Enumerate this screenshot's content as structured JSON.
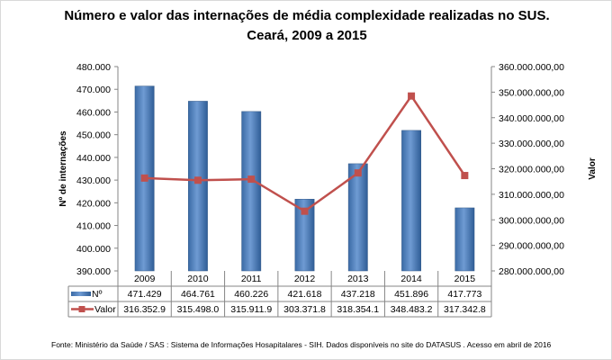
{
  "chart_data": {
    "type": "bar+line",
    "title": "Número e valor das internações de média complexidade realizadas no SUS.",
    "subtitle": "Ceará, 2009 a 2015",
    "categories": [
      "2009",
      "2010",
      "2011",
      "2012",
      "2013",
      "2014",
      "2015"
    ],
    "ylabel_left": "Nº de internações",
    "ylabel_right": "Valor",
    "ylim_left": [
      390000,
      480000
    ],
    "ylim_right": [
      280000000,
      360000000
    ],
    "yticks_left": [
      "390.000",
      "400.000",
      "410.000",
      "420.000",
      "430.000",
      "440.000",
      "450.000",
      "460.000",
      "470.000",
      "480.000"
    ],
    "yticks_right": [
      "280.000.000,00",
      "290.000.000,00",
      "300.000.000,00",
      "310.000.000,00",
      "320.000.000,00",
      "330.000.000,00",
      "340.000.000,00",
      "350.000.000,00",
      "360.000.000,00"
    ],
    "grid": false,
    "series": [
      {
        "name": "Nº",
        "type": "bar",
        "axis": "left",
        "color": "#4f81bd",
        "values": [
          471429,
          464761,
          460226,
          421618,
          437218,
          451896,
          417773
        ],
        "labels": [
          "471.429",
          "464.761",
          "460.226",
          "421.618",
          "437.218",
          "451.896",
          "417.773"
        ]
      },
      {
        "name": "Valor",
        "type": "line",
        "axis": "right",
        "color": "#c0504d",
        "values": [
          316352900,
          315498000,
          315911900,
          303371800,
          318354100,
          348483200,
          317342800
        ],
        "labels": [
          "316.352.9",
          "315.498.0",
          "315.911.9",
          "303.371.8",
          "318.354.1",
          "348.483.2",
          "317.342.8"
        ]
      }
    ],
    "legend": "data-table"
  },
  "source": "Fonte:  Ministério da Saúde / SAS : Sistema de Informações Hosapitalares - SIH. Dados disponíveis no site do DATASUS . Acesso em abril de 2016"
}
